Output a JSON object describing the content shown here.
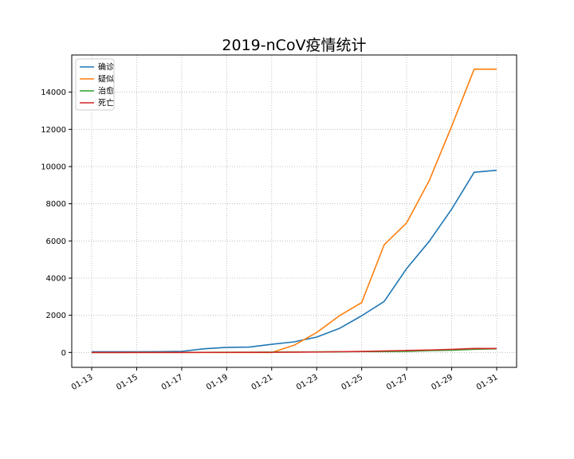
{
  "chart_data": {
    "type": "line",
    "title": "2019-nCoV疫情统计",
    "xlabel": "",
    "ylabel": "",
    "x": [
      "01-13",
      "01-14",
      "01-15",
      "01-16",
      "01-17",
      "01-18",
      "01-19",
      "01-20",
      "01-21",
      "01-22",
      "01-23",
      "01-24",
      "01-25",
      "01-26",
      "01-27",
      "01-28",
      "01-29",
      "01-30",
      "01-31"
    ],
    "x_tick_labels": [
      "01-13",
      "01-15",
      "01-17",
      "01-19",
      "01-21",
      "01-23",
      "01-25",
      "01-27",
      "01-29",
      "01-31"
    ],
    "y_ticks": [
      0,
      2000,
      4000,
      6000,
      8000,
      10000,
      12000,
      14000
    ],
    "ylim": [
      -800,
      16000
    ],
    "grid": true,
    "legend_position": "top-left",
    "series": [
      {
        "name": "确诊",
        "color": "#1f77b4",
        "values": [
          41,
          41,
          41,
          45,
          62,
          198,
          275,
          291,
          440,
          571,
          830,
          1287,
          1975,
          2744,
          4515,
          5974,
          7711,
          9692,
          9800
        ]
      },
      {
        "name": "疑似",
        "color": "#ff7f0e",
        "values": [
          0,
          0,
          0,
          0,
          0,
          0,
          0,
          0,
          0,
          393,
          1072,
          1965,
          2684,
          5794,
          6973,
          9239,
          12167,
          15238,
          15238
        ]
      },
      {
        "name": "治愈",
        "color": "#2ca02c",
        "values": [
          0,
          0,
          5,
          5,
          7,
          7,
          10,
          13,
          25,
          28,
          34,
          38,
          49,
          51,
          60,
          103,
          124,
          171,
          200
        ]
      },
      {
        "name": "死亡",
        "color": "#d62728",
        "values": [
          1,
          1,
          2,
          2,
          2,
          3,
          4,
          6,
          9,
          17,
          25,
          41,
          56,
          80,
          106,
          132,
          170,
          213,
          213
        ]
      }
    ]
  }
}
